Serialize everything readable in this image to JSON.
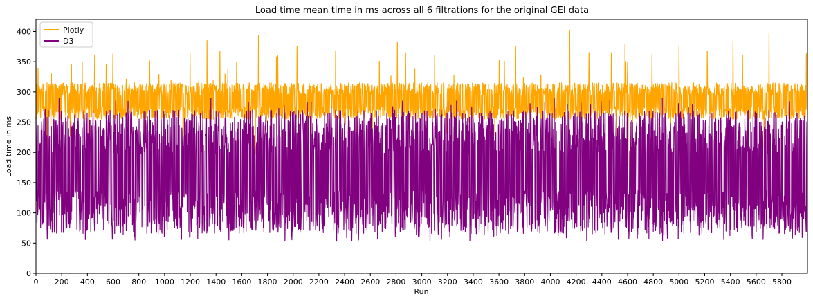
{
  "chart_data": {
    "type": "line",
    "title": "Load time mean time in ms across all 6 filtrations for the original GEI data",
    "xlabel": "Run",
    "ylabel": "Load time in ms",
    "xlim": [
      0,
      5999
    ],
    "ylim": [
      0,
      420
    ],
    "x_ticks": [
      0,
      200,
      400,
      600,
      800,
      1000,
      1200,
      1400,
      1600,
      1800,
      2000,
      2200,
      2400,
      2600,
      2800,
      3000,
      3200,
      3400,
      3600,
      3800,
      4000,
      4200,
      4400,
      4600,
      4800,
      5000,
      5200,
      5400,
      5600,
      5800
    ],
    "x_tick_labels": [
      "0",
      "200",
      "400",
      "600",
      "800",
      "1000",
      "1200",
      "1400",
      "1600",
      "1800",
      "2000",
      "2200",
      "2400",
      "2600",
      "2800",
      "3000",
      "3200",
      "3400",
      "3600",
      "3800",
      "4000",
      "4200",
      "4400",
      "4600",
      "4800",
      "5000",
      "5200",
      "5400",
      "5600",
      "5800"
    ],
    "y_ticks": [
      0,
      50,
      100,
      150,
      200,
      250,
      300,
      350,
      400
    ],
    "y_tick_labels": [
      "0",
      "50",
      "100",
      "150",
      "200",
      "250",
      "300",
      "350",
      "400"
    ],
    "grid": false,
    "legend_position": "top-left",
    "n_points": 6000,
    "series": [
      {
        "name": "Plotly",
        "color": "#FFA500",
        "typical_low": 255,
        "typical_high": 315,
        "min": 165,
        "max": 402,
        "peaks": [
          [
            0,
            345
          ],
          [
            120,
            330
          ],
          [
            275,
            345
          ],
          [
            455,
            360
          ],
          [
            545,
            345
          ],
          [
            1330,
            385
          ],
          [
            1430,
            368
          ],
          [
            1560,
            350
          ],
          [
            1730,
            393
          ],
          [
            1870,
            358
          ],
          [
            2030,
            375
          ],
          [
            2330,
            368
          ],
          [
            2810,
            382
          ],
          [
            3100,
            360
          ],
          [
            3730,
            375
          ],
          [
            4150,
            402
          ],
          [
            4300,
            365
          ],
          [
            4580,
            378
          ],
          [
            4790,
            362
          ],
          [
            5000,
            375
          ],
          [
            5220,
            368
          ],
          [
            5420,
            385
          ],
          [
            5700,
            398
          ],
          [
            5990,
            360
          ]
        ]
      },
      {
        "name": "D3",
        "color": "#800080",
        "typical_low": 65,
        "typical_high": 270,
        "min": 53,
        "max": 297,
        "peaks": [
          [
            180,
            290
          ],
          [
            620,
            285
          ],
          [
            1360,
            290
          ],
          [
            2110,
            283
          ],
          [
            2850,
            285
          ],
          [
            3270,
            285
          ],
          [
            4030,
            290
          ],
          [
            4870,
            290
          ],
          [
            5860,
            284
          ]
        ]
      }
    ]
  }
}
